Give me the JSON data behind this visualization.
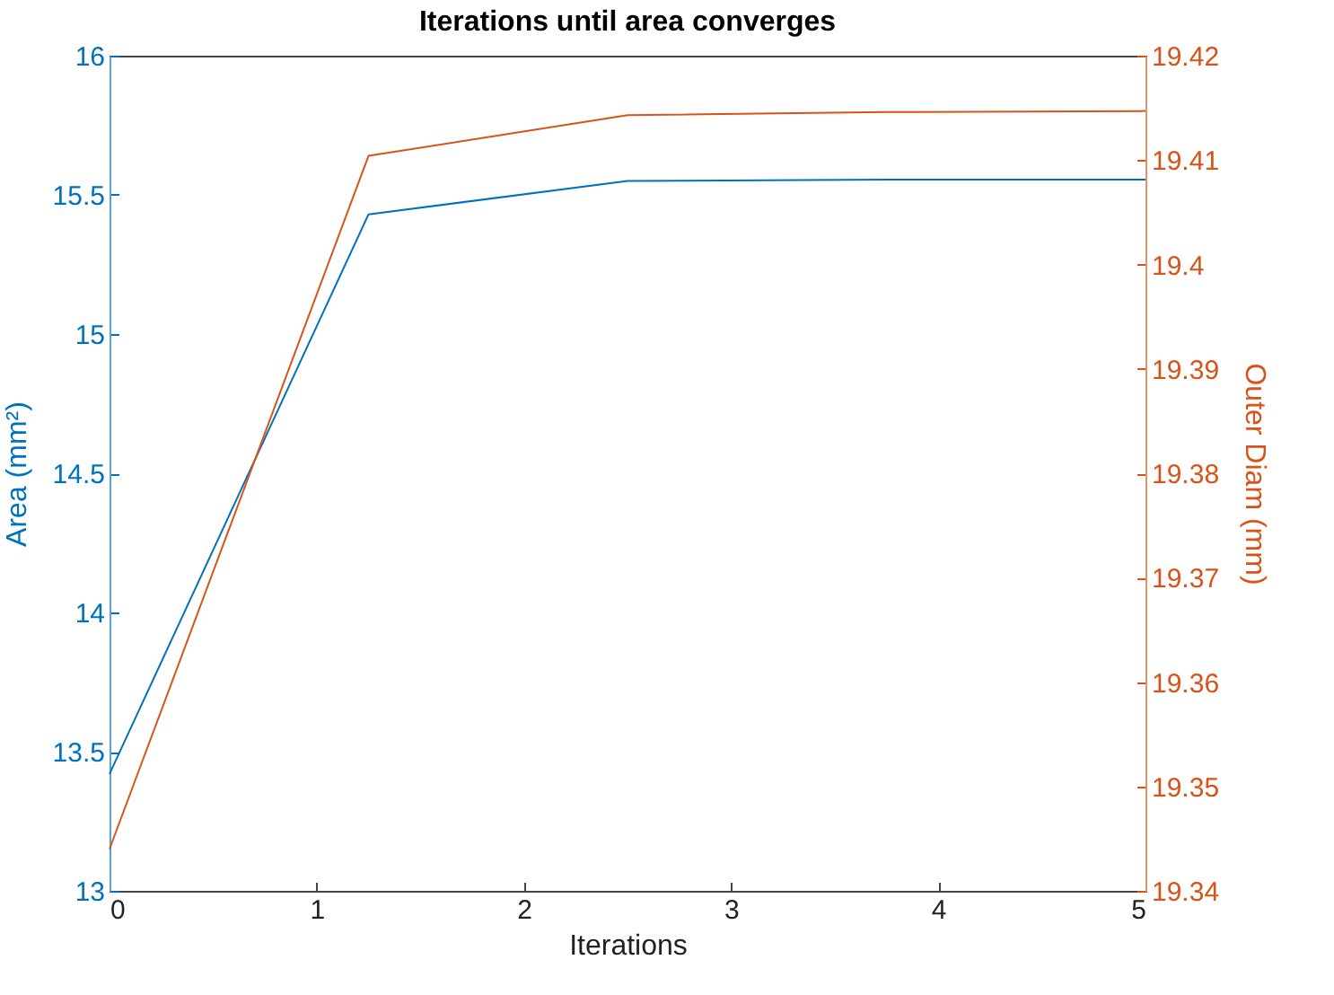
{
  "chart_data": {
    "type": "line",
    "title": "Iterations until area converges",
    "xlabel": "Iterations",
    "ylabel": "Area (mm²)",
    "y2label": "Outer Diam (mm)",
    "x": [
      0,
      1.25,
      2.5,
      3.75,
      5
    ],
    "series": [
      {
        "color": "#0072bd",
        "values": [
          13.42,
          15.43,
          15.55,
          15.555,
          15.555
        ]
      },
      {
        "color": "#d95319",
        "axis": "y2",
        "values": [
          19.344,
          19.4104,
          19.4143,
          19.4146,
          19.4147
        ]
      }
    ],
    "xlim": [
      0,
      5
    ],
    "xticks": [
      0,
      1,
      2,
      3,
      4,
      5
    ],
    "ylim": [
      13,
      16
    ],
    "yticks": [
      13,
      13.5,
      14,
      14.5,
      15,
      15.5,
      16
    ],
    "y2lim": [
      19.34,
      19.42
    ],
    "y2ticks": [
      19.34,
      19.35,
      19.36,
      19.37,
      19.38,
      19.39,
      19.4,
      19.41,
      19.42
    ],
    "grid": false,
    "marker": "none",
    "line_style": "solid"
  }
}
